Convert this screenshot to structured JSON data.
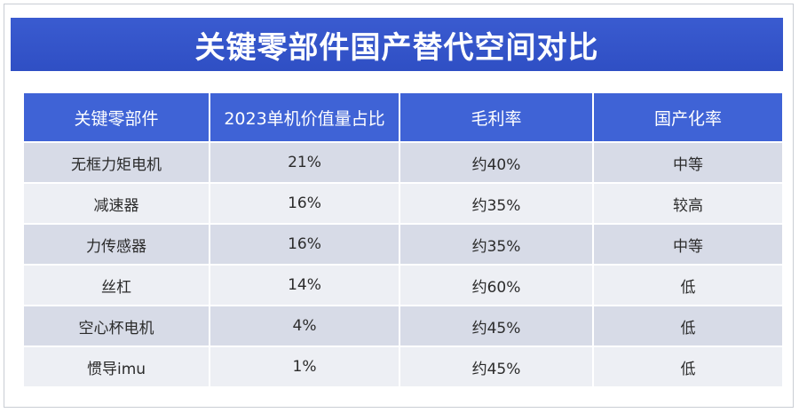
{
  "title": "关键零部件国产替代空间对比",
  "table": {
    "headers": [
      "关键零部件",
      "2023单机价值量占比",
      "毛利率",
      "国产化率"
    ],
    "rows": [
      [
        "无框力矩电机",
        "21%",
        "约40%",
        "中等"
      ],
      [
        "减速器",
        "16%",
        "约35%",
        "较高"
      ],
      [
        "力传感器",
        "16%",
        "约35%",
        "中等"
      ],
      [
        "丝杠",
        "14%",
        "约60%",
        "低"
      ],
      [
        "空心杯电机",
        "4%",
        "约45%",
        "低"
      ],
      [
        "惯导imu",
        "1%",
        "约45%",
        "低"
      ]
    ]
  },
  "colors": {
    "title_banner": "#3a5bd0",
    "header_cell": "#3f63d6",
    "row_odd": "#d7dbe7",
    "row_even": "#edeff4",
    "text": "#2b2b2b"
  }
}
